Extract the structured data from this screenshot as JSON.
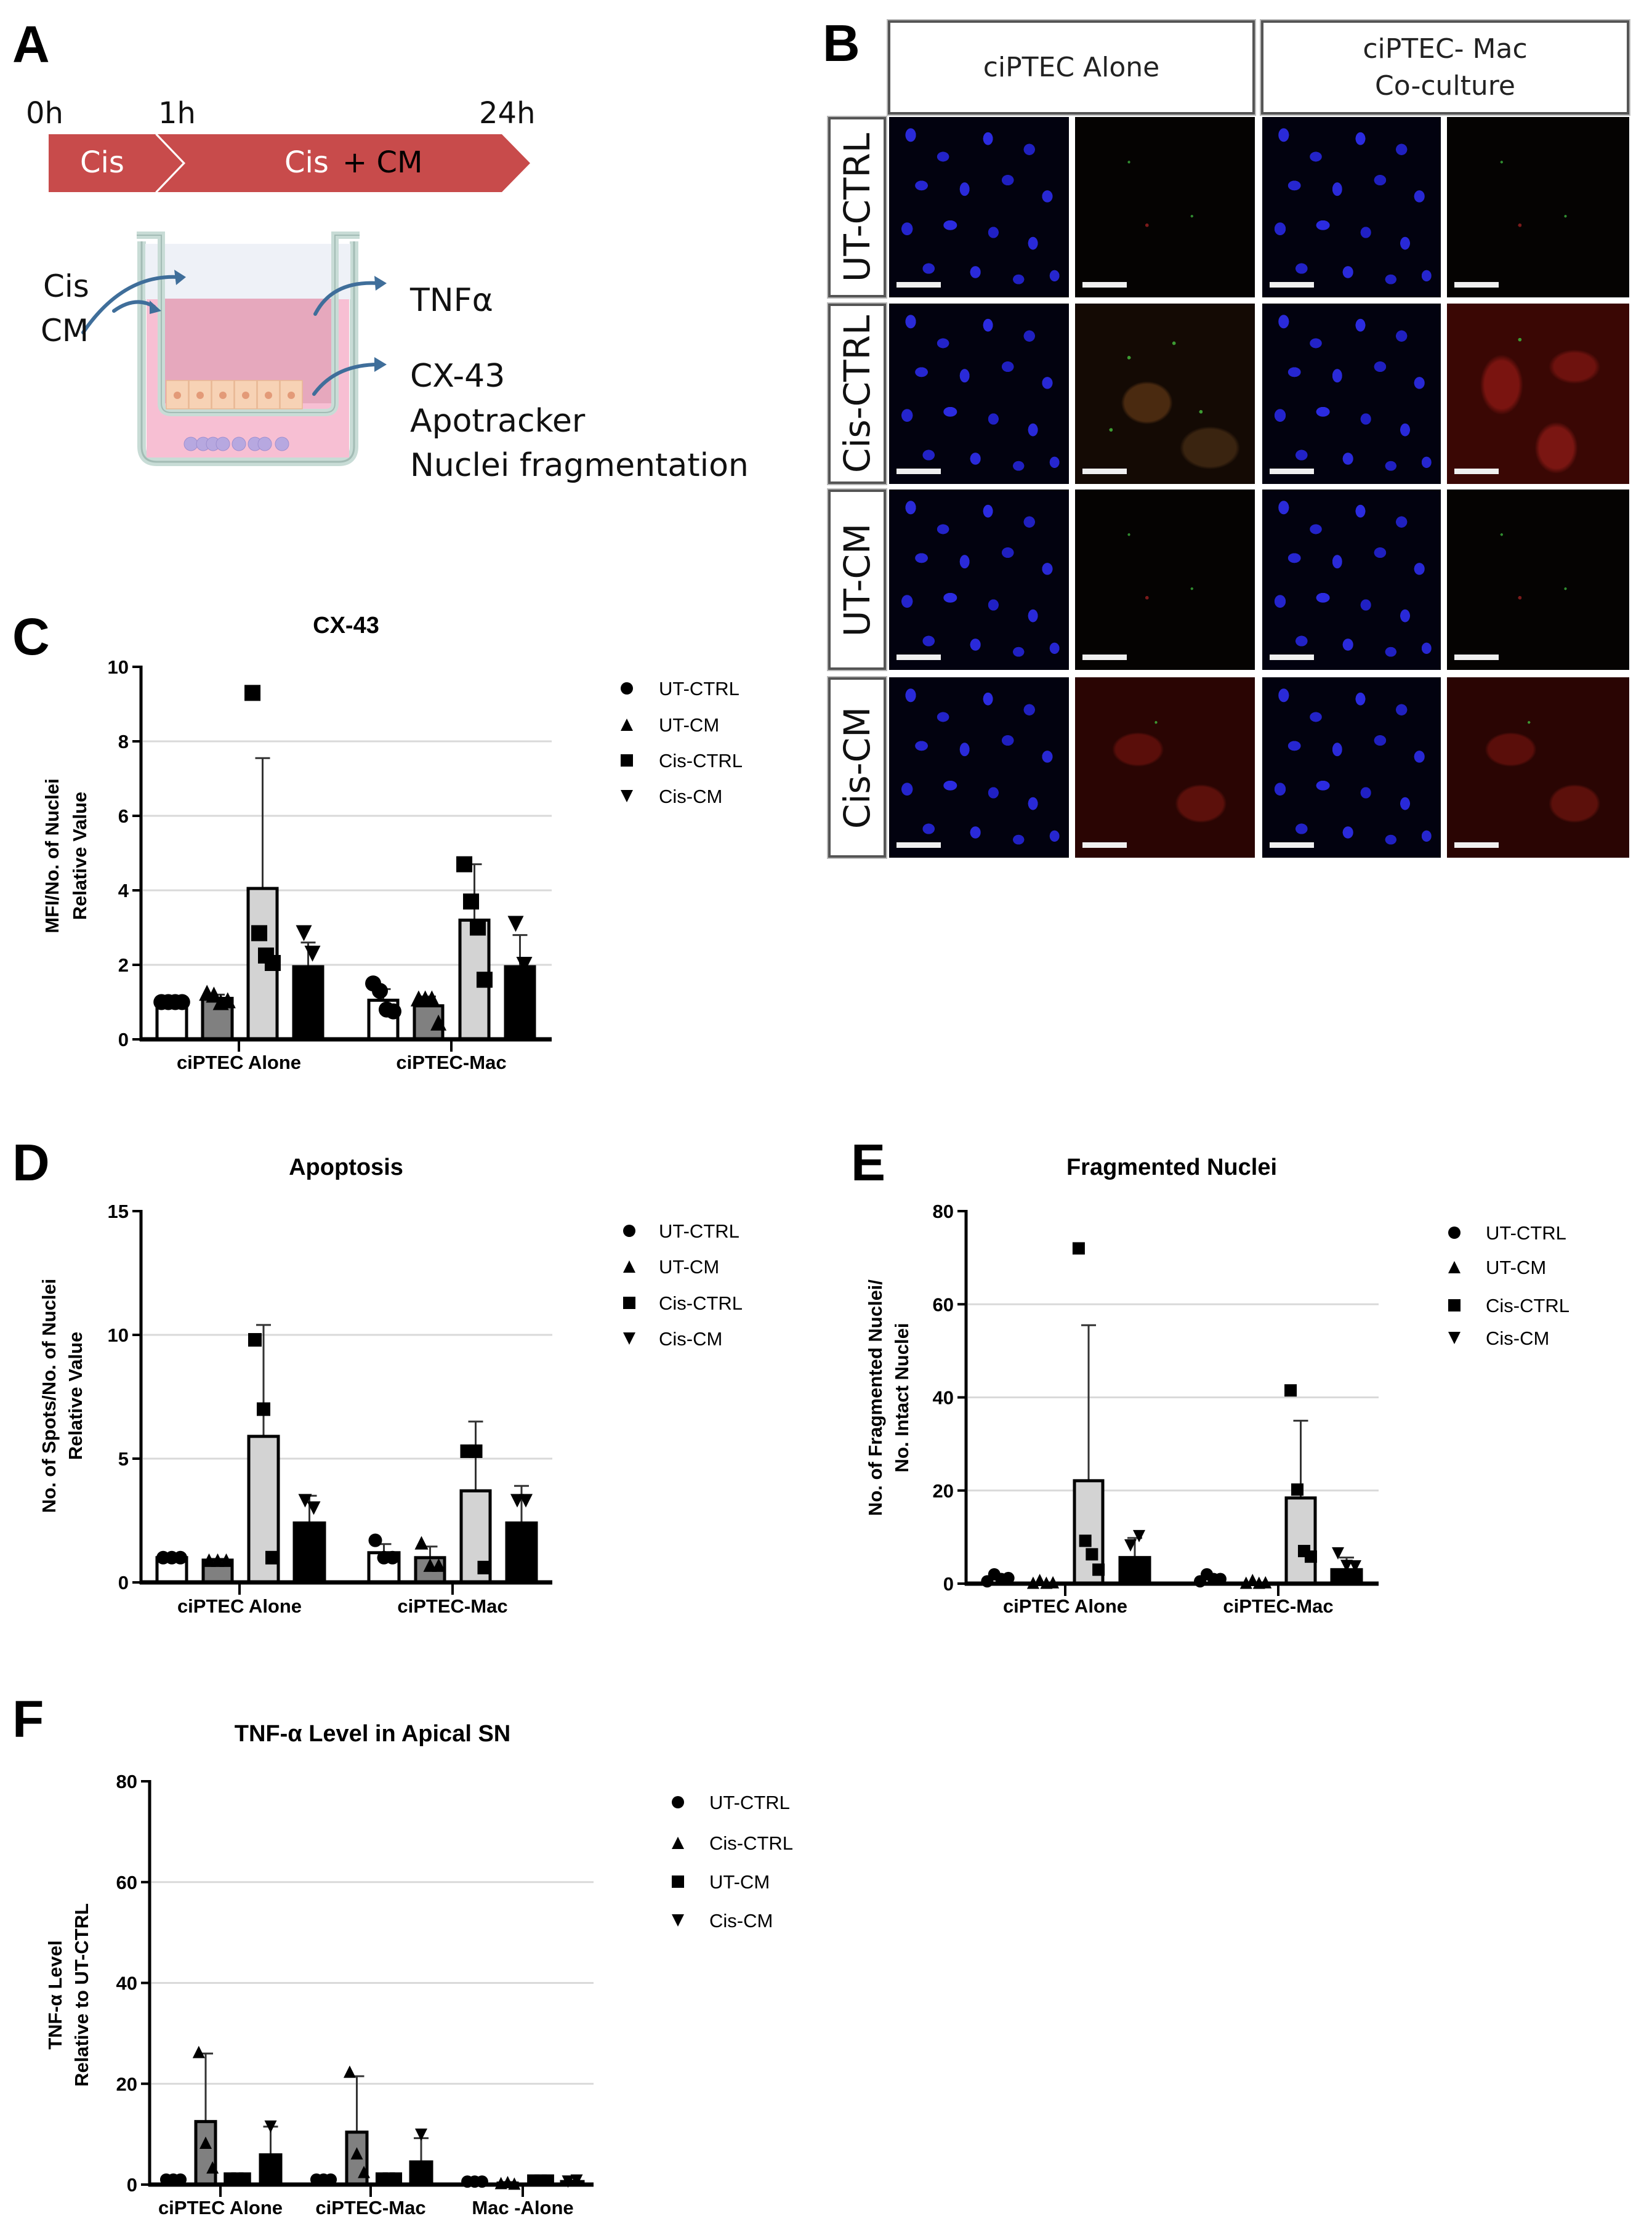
{
  "panels": {
    "A": {
      "letter": "A",
      "timeline": {
        "ticks": [
          "0h",
          "1h",
          "24h"
        ],
        "segment1_label": "Cis",
        "segment2_label_cis": "Cis",
        "segment2_label_cm": "+ CM",
        "color": "#c84b4b"
      },
      "diagram": {
        "inputs": [
          "Cis",
          "CM"
        ],
        "outputs": [
          "TNFα",
          "CX-43",
          "Apotracker",
          "Nuclei fragmentation"
        ],
        "arrow_color": "#3f6e9a"
      }
    },
    "B": {
      "letter": "B",
      "column_headers": [
        "ciPTEC Alone",
        "ciPTEC- Mac\nCo-culture"
      ],
      "row_labels": [
        "UT-CTRL",
        "Cis-CTRL",
        "UT-CM",
        "Cis-CM"
      ]
    },
    "C": {
      "letter": "C"
    },
    "D": {
      "letter": "D"
    },
    "E": {
      "letter": "E"
    },
    "F": {
      "letter": "F"
    }
  },
  "chart_data": [
    {
      "id": "C",
      "type": "bar",
      "title": "CX-43",
      "xlabel": "",
      "ylabel": [
        "MFI/No. of Nuclei",
        "Relative Value"
      ],
      "ylim": [
        0,
        10
      ],
      "yticks": [
        0,
        2,
        4,
        6,
        8,
        10
      ],
      "grid": true,
      "legend_position": "right",
      "categories": [
        "ciPTEC Alone",
        "ciPTEC-Mac"
      ],
      "series": [
        {
          "name": "UT-CTRL",
          "marker": "circle",
          "fill": "#ffffff",
          "values": [
            1.0,
            1.05
          ],
          "sd": [
            0.0,
            0.3
          ],
          "points": [
            [
              1.0,
              1.0,
              1.0,
              1.0
            ],
            [
              1.5,
              1.3,
              0.8,
              0.75
            ]
          ]
        },
        {
          "name": "UT-CM",
          "marker": "triangle-up",
          "fill": "#808080",
          "values": [
            1.1,
            0.9
          ],
          "sd": [
            0.1,
            0.25
          ],
          "points": [
            [
              1.25,
              1.2,
              1.0,
              1.05
            ],
            [
              1.1,
              1.1,
              1.1,
              0.45
            ]
          ]
        },
        {
          "name": "Cis-CTRL",
          "marker": "square",
          "fill": "#d3d3d3",
          "values": [
            4.05,
            3.2
          ],
          "sd": [
            3.5,
            1.5
          ],
          "points": [
            [
              9.3,
              2.85,
              2.25,
              2.05
            ],
            [
              4.7,
              3.7,
              3.0,
              1.6
            ]
          ]
        },
        {
          "name": "Cis-CM",
          "marker": "triangle-down",
          "fill": "#000000",
          "values": [
            1.95,
            1.95
          ],
          "sd": [
            0.65,
            0.85
          ],
          "points": [
            [
              2.85,
              2.3
            ],
            [
              3.1,
              2.0
            ]
          ]
        }
      ]
    },
    {
      "id": "D",
      "type": "bar",
      "title": "Apoptosis",
      "xlabel": "",
      "ylabel": [
        "No. of Spots/No. of Nuclei",
        "Relative Value"
      ],
      "ylim": [
        0,
        15
      ],
      "yticks": [
        0,
        5,
        10,
        15
      ],
      "grid": true,
      "legend_position": "right",
      "categories": [
        "ciPTEC Alone",
        "ciPTEC-Mac"
      ],
      "series": [
        {
          "name": "UT-CTRL",
          "marker": "circle",
          "fill": "#ffffff",
          "values": [
            1.0,
            1.2
          ],
          "sd": [
            0.0,
            0.35
          ],
          "points": [
            [
              1.0,
              1.0,
              1.0
            ],
            [
              1.7,
              1.0,
              1.0
            ]
          ]
        },
        {
          "name": "UT-CM",
          "marker": "triangle-up",
          "fill": "#808080",
          "values": [
            0.9,
            1.0
          ],
          "sd": [
            0.05,
            0.45
          ],
          "points": [
            [
              0.9,
              0.9,
              0.9
            ],
            [
              1.6,
              0.7,
              0.7
            ]
          ]
        },
        {
          "name": "Cis-CTRL",
          "marker": "square",
          "fill": "#d3d3d3",
          "values": [
            5.9,
            3.7
          ],
          "sd": [
            4.5,
            2.8
          ],
          "points": [
            [
              9.8,
              7.0,
              1.0
            ],
            [
              5.3,
              5.3,
              0.6
            ]
          ]
        },
        {
          "name": "Cis-CM",
          "marker": "triangle-down",
          "fill": "#000000",
          "values": [
            2.4,
            2.4
          ],
          "sd": [
            1.1,
            1.5
          ],
          "points": [
            [
              3.3,
              3.0
            ],
            [
              3.3,
              3.3
            ]
          ]
        }
      ]
    },
    {
      "id": "E",
      "type": "bar",
      "title": "Fragmented Nuclei",
      "xlabel": "",
      "ylabel": [
        "No. of Fragmented Nuclei/",
        "No. Intact Nuclei"
      ],
      "ylim": [
        0,
        80
      ],
      "yticks": [
        0,
        20,
        40,
        60,
        80
      ],
      "grid": true,
      "legend_position": "right",
      "categories": [
        "ciPTEC Alone",
        "ciPTEC-Mac"
      ],
      "series": [
        {
          "name": "UT-CTRL",
          "marker": "circle",
          "fill": "#ffffff",
          "values": [
            1.0,
            1.0
          ],
          "sd": [
            0.8,
            0.7
          ],
          "points": [
            [
              0.5,
              2.0,
              1.0,
              1.2
            ],
            [
              0.5,
              2.0,
              1.0,
              1.0
            ]
          ]
        },
        {
          "name": "UT-CM",
          "marker": "triangle-up",
          "fill": "#808080",
          "values": [
            0.3,
            0.3
          ],
          "sd": [
            0.3,
            0.3
          ],
          "points": [
            [
              0.2,
              0.8,
              0.2,
              0.3
            ],
            [
              0.2,
              0.8,
              0.2,
              0.3
            ]
          ]
        },
        {
          "name": "Cis-CTRL",
          "marker": "square",
          "fill": "#d3d3d3",
          "values": [
            22.1,
            18.4
          ],
          "sd": [
            33.4,
            16.6
          ],
          "points": [
            [
              72.0,
              9.2,
              6.3,
              3.0
            ],
            [
              41.5,
              20.2,
              7.0,
              5.8
            ]
          ]
        },
        {
          "name": "Cis-CM",
          "marker": "triangle-down",
          "fill": "#000000",
          "values": [
            5.6,
            3.0
          ],
          "sd": [
            4.2,
            2.6
          ],
          "points": [
            [
              8.2,
              10.2
            ],
            [
              6.5,
              3.8,
              3.7
            ]
          ]
        }
      ]
    },
    {
      "id": "F",
      "type": "bar",
      "title": "TNF-α Level in Apical SN",
      "xlabel": "",
      "ylabel": [
        "TNF-α Level",
        "Relative to UT-CTRL"
      ],
      "ylim": [
        0,
        80
      ],
      "yticks": [
        0,
        20,
        40,
        60,
        80
      ],
      "grid": true,
      "legend_position": "right",
      "categories": [
        "ciPTEC Alone",
        "ciPTEC-Mac",
        "Mac -Alone"
      ],
      "series": [
        {
          "name": "UT-CTRL",
          "marker": "circle",
          "fill": "#000000",
          "values": [
            1.0,
            1.0,
            0.6
          ],
          "sd": [
            0,
            0,
            0
          ],
          "points": [
            [
              1.0,
              1.0,
              1.0
            ],
            [
              1.0,
              1.0,
              1.0
            ],
            [
              0.6,
              0.6,
              0.6
            ]
          ]
        },
        {
          "name": "Cis-CTRL",
          "marker": "triangle-up",
          "fill": "#808080",
          "values": [
            12.5,
            10.4,
            0.3
          ],
          "sd": [
            13.5,
            11.1,
            0.2
          ],
          "points": [
            [
              26.3,
              8.3,
              3.4
            ],
            [
              22.4,
              6.2,
              2.5
            ],
            [
              0.3,
              0.5,
              0.2
            ]
          ]
        },
        {
          "name": "UT-CM",
          "marker": "square",
          "fill": "#000000",
          "values": [
            1.2,
            1.2,
            0.8
          ],
          "sd": [
            0,
            0,
            0
          ],
          "points": [
            [
              1.2,
              1.2,
              1.2
            ],
            [
              1.2,
              1.2,
              1.2
            ],
            [
              0.8,
              0.8,
              0.8
            ]
          ]
        },
        {
          "name": "Cis-CM",
          "marker": "triangle-down",
          "fill": "#000000",
          "values": [
            5.9,
            4.5,
            0.6
          ],
          "sd": [
            5.6,
            4.7,
            0.2
          ],
          "points": [
            [
              11.5
            ],
            [
              9.9
            ],
            [
              0.6,
              0.8
            ]
          ]
        }
      ]
    }
  ]
}
